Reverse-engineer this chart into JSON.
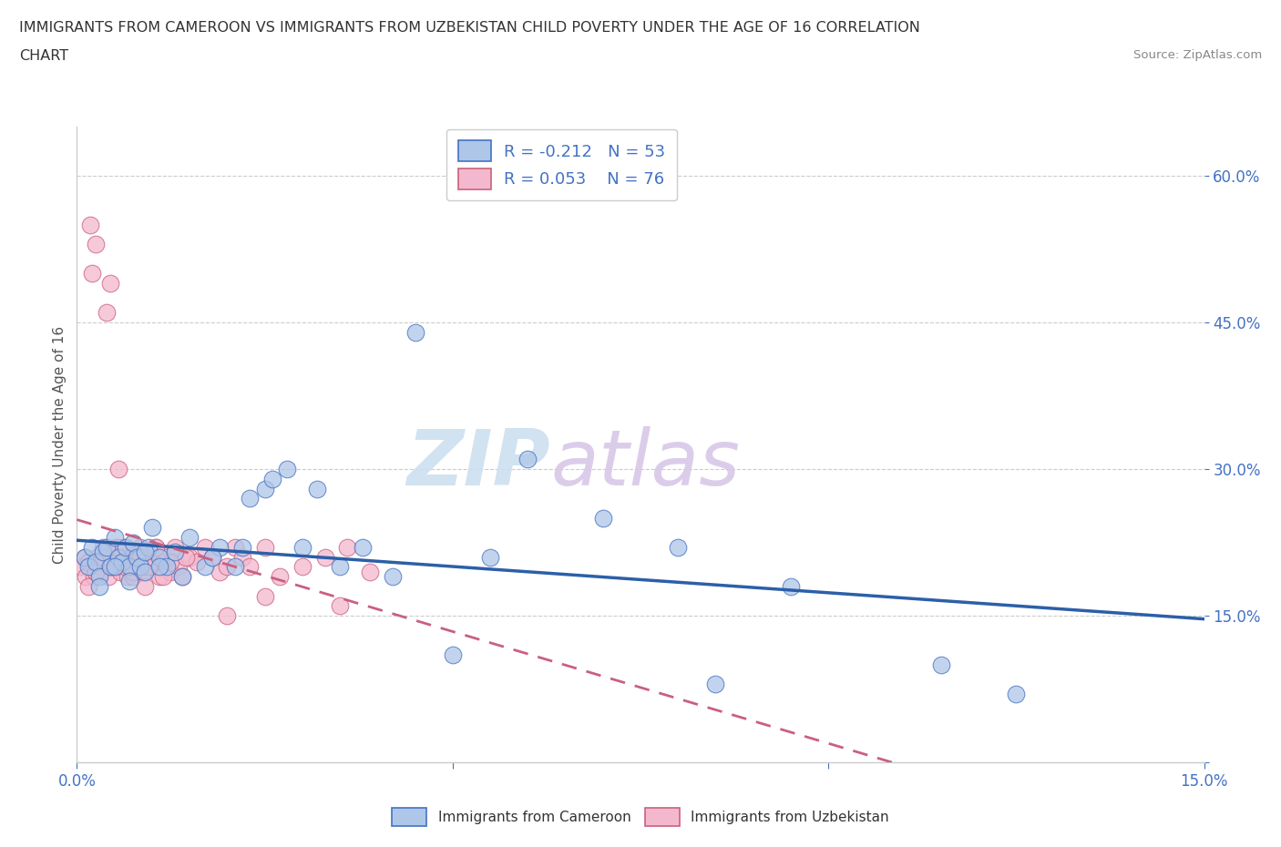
{
  "title_line1": "IMMIGRANTS FROM CAMEROON VS IMMIGRANTS FROM UZBEKISTAN CHILD POVERTY UNDER THE AGE OF 16 CORRELATION",
  "title_line2": "CHART",
  "source_text": "Source: ZipAtlas.com",
  "ylabel": "Child Poverty Under the Age of 16",
  "xlim": [
    0.0,
    15.0
  ],
  "ylim": [
    0.0,
    65.0
  ],
  "cameroon_color": "#aec6e8",
  "cameroon_edge": "#4472c4",
  "uzbekistan_color": "#f4b8ce",
  "uzbekistan_edge": "#c9617a",
  "trend_cameroon_color": "#2c5fa8",
  "trend_uzbekistan_color": "#c96080",
  "R_cameroon": -0.212,
  "N_cameroon": 53,
  "R_uzbekistan": 0.053,
  "N_uzbekistan": 76,
  "watermark_zip": "ZIP",
  "watermark_atlas": "atlas",
  "legend_label_cameroon": "Immigrants from Cameroon",
  "legend_label_uzbekistan": "Immigrants from Uzbekistan",
  "cameroon_x": [
    0.1,
    0.15,
    0.2,
    0.25,
    0.3,
    0.35,
    0.4,
    0.45,
    0.5,
    0.55,
    0.6,
    0.65,
    0.7,
    0.75,
    0.8,
    0.85,
    0.9,
    0.95,
    1.0,
    1.1,
    1.2,
    1.3,
    1.5,
    1.7,
    1.9,
    2.1,
    2.3,
    2.5,
    2.8,
    3.2,
    3.8,
    4.5,
    5.5,
    7.0,
    8.0,
    9.5,
    11.5,
    0.3,
    0.5,
    0.7,
    0.9,
    1.1,
    1.4,
    1.8,
    2.2,
    2.6,
    3.0,
    3.5,
    4.2,
    5.0,
    6.0,
    8.5,
    12.5
  ],
  "cameroon_y": [
    21.0,
    20.0,
    22.0,
    20.5,
    19.0,
    21.5,
    22.0,
    20.0,
    23.0,
    21.0,
    20.5,
    22.0,
    20.0,
    22.5,
    21.0,
    20.0,
    19.5,
    22.0,
    24.0,
    21.0,
    20.0,
    21.5,
    23.0,
    20.0,
    22.0,
    20.0,
    27.0,
    28.0,
    30.0,
    28.0,
    22.0,
    44.0,
    21.0,
    25.0,
    22.0,
    18.0,
    10.0,
    18.0,
    20.0,
    18.5,
    21.5,
    20.0,
    19.0,
    21.0,
    22.0,
    29.0,
    22.0,
    20.0,
    19.0,
    11.0,
    31.0,
    8.0,
    7.0
  ],
  "uzbekistan_x": [
    0.05,
    0.1,
    0.12,
    0.15,
    0.18,
    0.2,
    0.22,
    0.25,
    0.28,
    0.3,
    0.32,
    0.35,
    0.38,
    0.4,
    0.42,
    0.45,
    0.48,
    0.5,
    0.52,
    0.55,
    0.58,
    0.6,
    0.62,
    0.65,
    0.68,
    0.7,
    0.72,
    0.75,
    0.78,
    0.8,
    0.82,
    0.85,
    0.88,
    0.9,
    0.92,
    0.95,
    1.0,
    1.05,
    1.1,
    1.15,
    1.2,
    1.25,
    1.3,
    1.35,
    1.4,
    1.5,
    1.6,
    1.7,
    1.8,
    1.9,
    2.0,
    2.1,
    2.2,
    2.3,
    2.5,
    2.7,
    3.0,
    3.3,
    3.6,
    3.9,
    0.15,
    0.25,
    0.35,
    0.45,
    0.55,
    0.65,
    0.75,
    0.85,
    0.95,
    1.05,
    1.15,
    1.25,
    1.45,
    2.0,
    2.5,
    3.5
  ],
  "uzbekistan_y": [
    20.0,
    21.0,
    19.0,
    20.5,
    55.0,
    50.0,
    19.0,
    53.0,
    21.0,
    19.5,
    20.0,
    22.0,
    20.5,
    46.0,
    19.0,
    49.0,
    21.0,
    20.0,
    22.0,
    30.0,
    19.5,
    20.0,
    22.0,
    21.0,
    19.0,
    20.5,
    21.0,
    19.0,
    20.0,
    21.5,
    20.0,
    22.0,
    19.5,
    18.0,
    20.0,
    21.0,
    20.0,
    22.0,
    19.0,
    20.5,
    21.0,
    19.5,
    22.0,
    20.0,
    19.0,
    21.0,
    20.5,
    22.0,
    21.0,
    19.5,
    20.0,
    22.0,
    21.0,
    20.0,
    22.0,
    19.0,
    20.0,
    21.0,
    22.0,
    19.5,
    18.0,
    19.5,
    21.0,
    20.0,
    22.0,
    20.0,
    19.5,
    21.0,
    20.0,
    22.0,
    19.0,
    20.5,
    21.0,
    15.0,
    17.0,
    16.0
  ]
}
